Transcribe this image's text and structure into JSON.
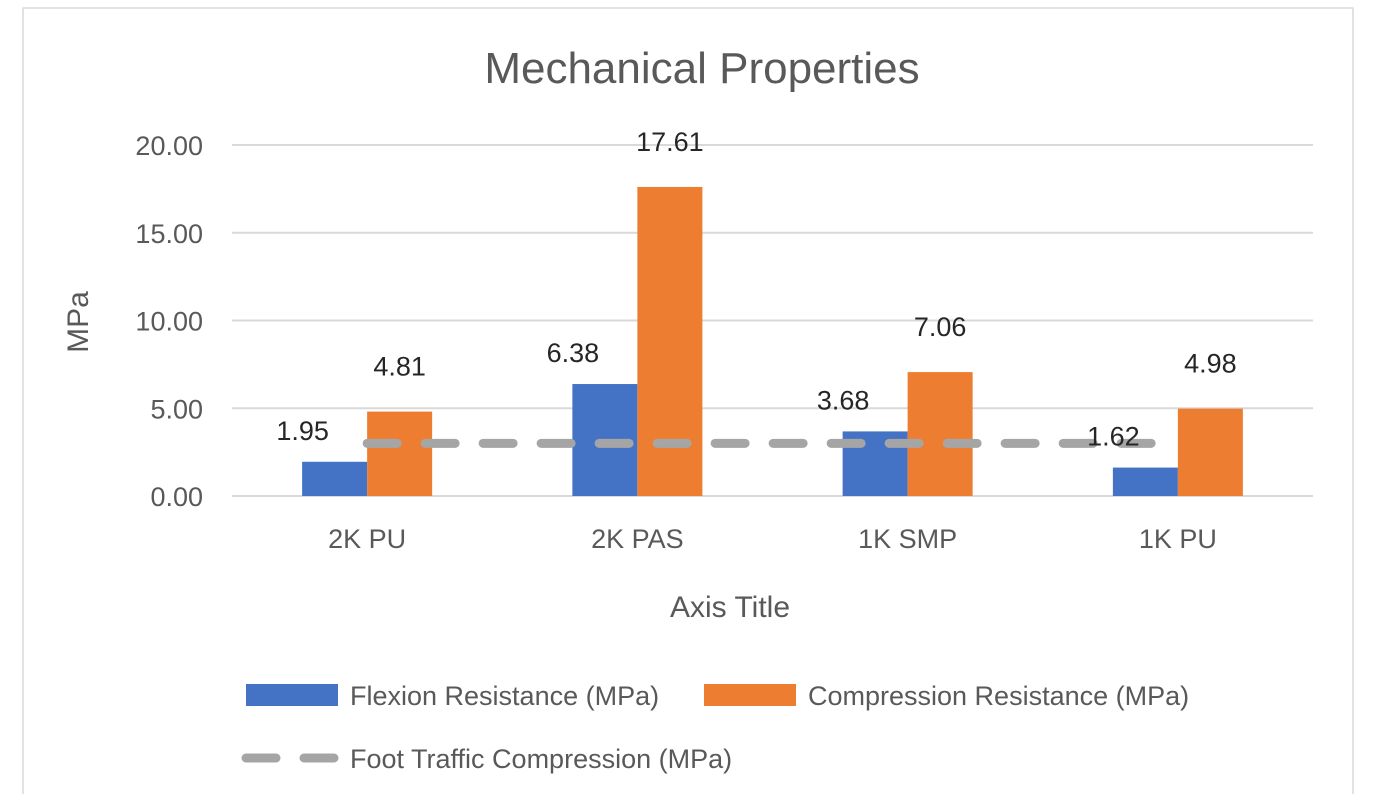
{
  "chart_data": {
    "type": "bar",
    "title": "Mechanical Properties",
    "xlabel": "Axis Title",
    "ylabel": "MPa",
    "categories": [
      "2K PU",
      "2K PAS",
      "1K SMP",
      "1K PU"
    ],
    "ylim": [
      0,
      20
    ],
    "yticks": [
      "0.00",
      "5.00",
      "10.00",
      "15.00",
      "20.00"
    ],
    "grid": true,
    "legend_position": "bottom",
    "series": [
      {
        "name": "Flexion Resistance (MPa)",
        "values": [
          1.95,
          6.38,
          3.68,
          1.62
        ],
        "labels": [
          "1.95",
          "6.38",
          "3.68",
          "1.62"
        ],
        "color": "#4472C4"
      },
      {
        "name": "Compression Resistance (MPa)",
        "values": [
          4.81,
          17.61,
          7.06,
          4.98
        ],
        "labels": [
          "4.81",
          "17.61",
          "7.06",
          "4.98"
        ],
        "color": "#ED7D31"
      }
    ],
    "reference_line": {
      "name": "Foot Traffic Compression (MPa)",
      "value": 3,
      "color": "#A5A5A5",
      "style": "dashed"
    }
  }
}
